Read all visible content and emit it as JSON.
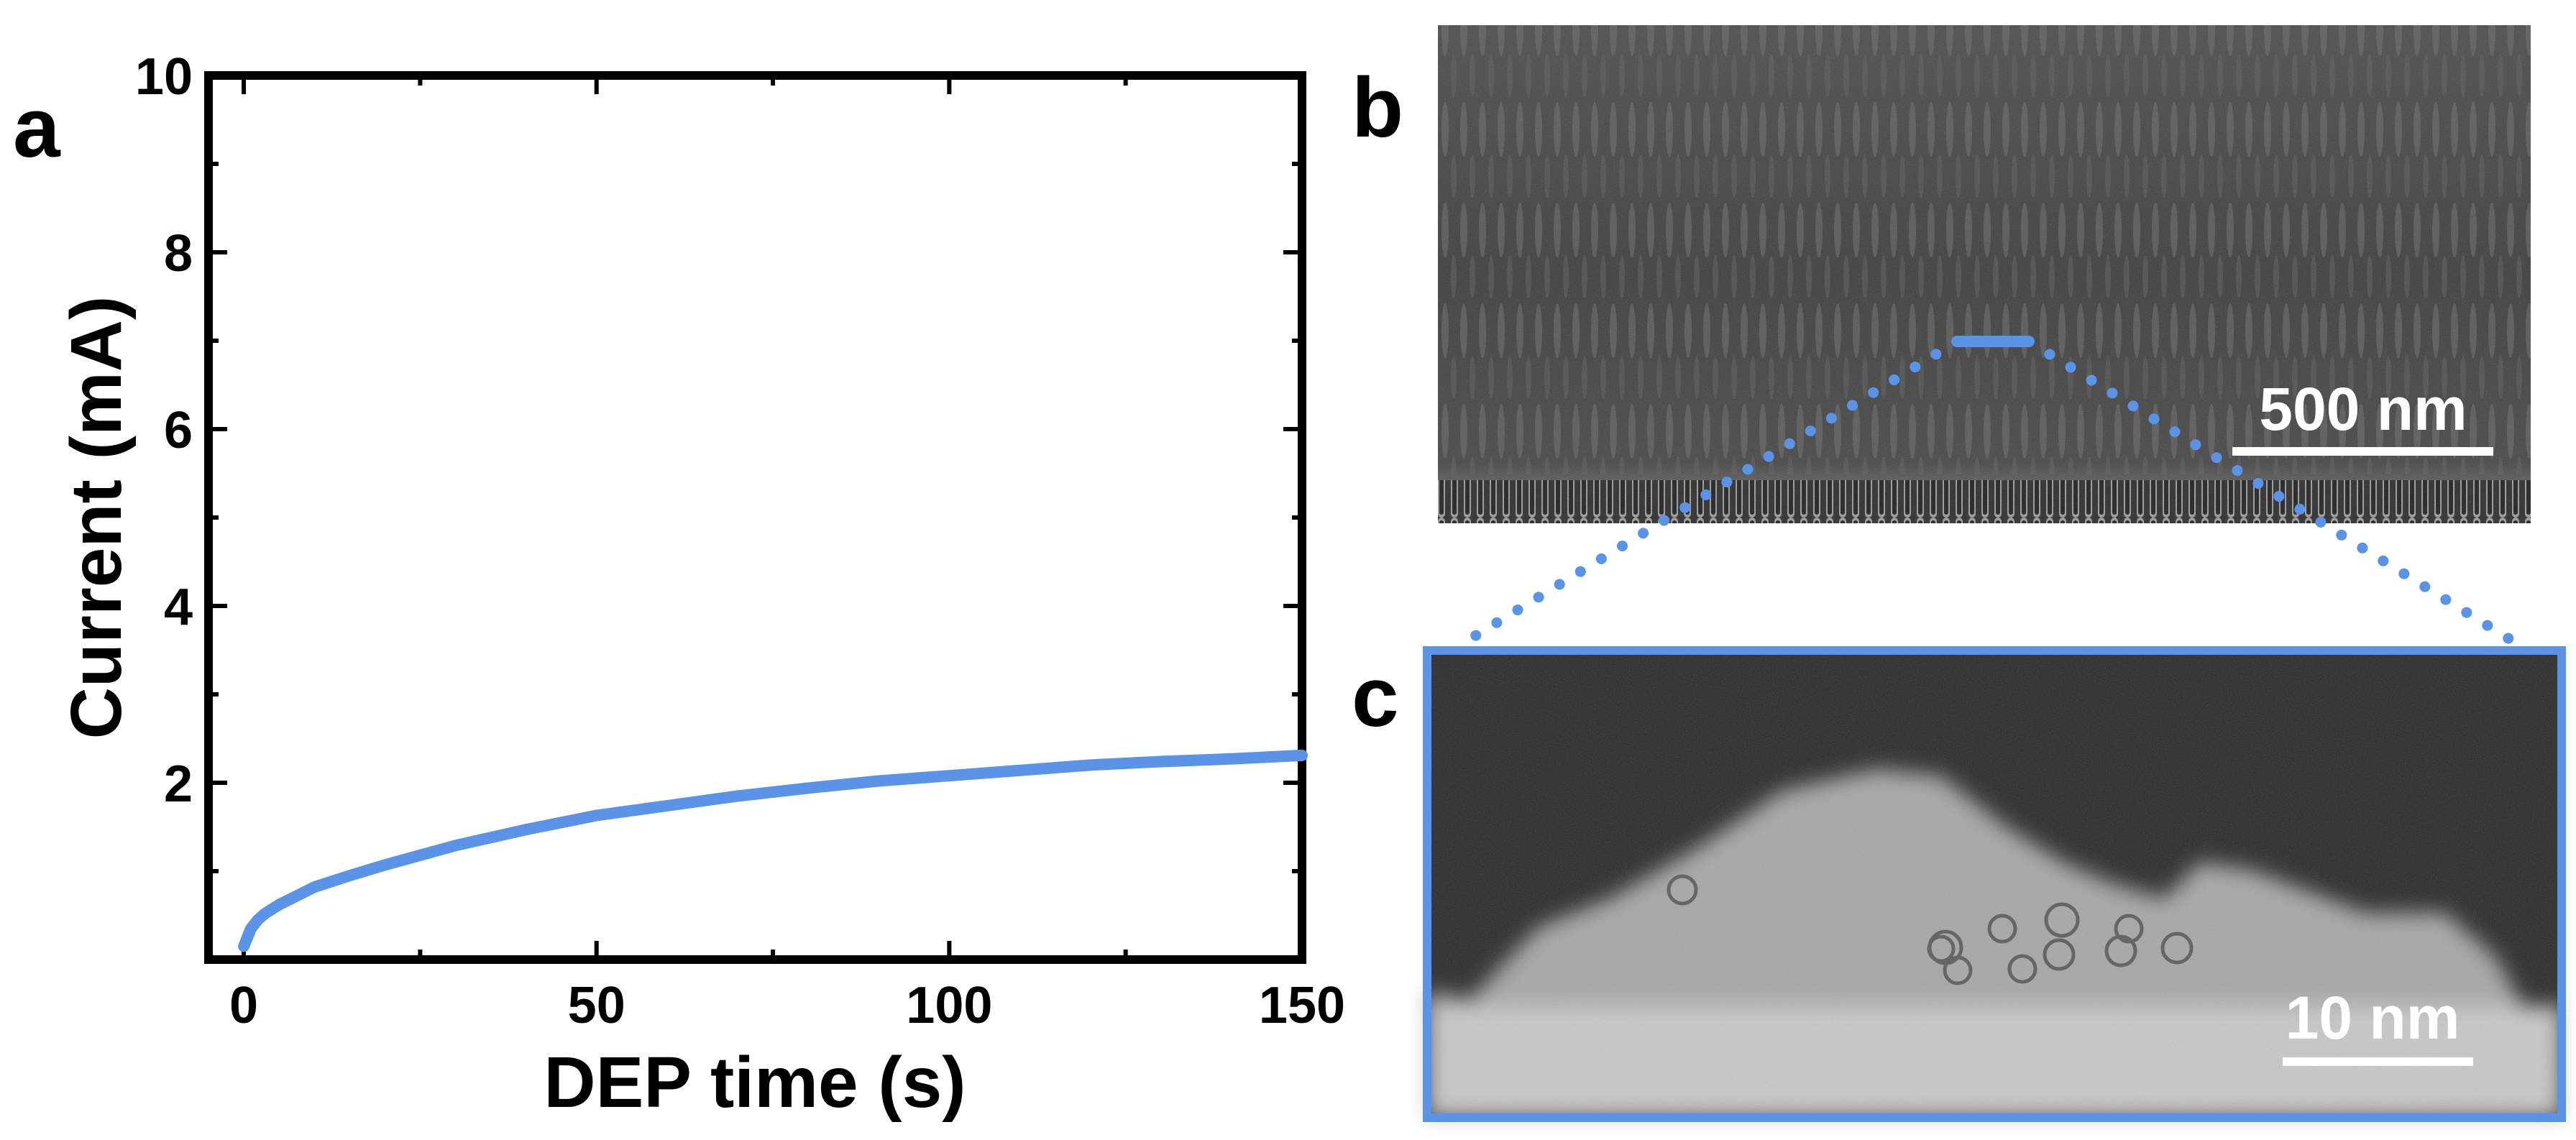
{
  "panels": {
    "a": "a",
    "b": "b",
    "c": "c"
  },
  "colors": {
    "curve": "#5b93e6",
    "highlight": "#5b93e6",
    "frame": "#000000"
  },
  "chart_data": {
    "type": "line",
    "xlabel": "DEP time (s)",
    "ylabel": "Current (mA)",
    "xlim": [
      -5,
      150
    ],
    "ylim": [
      0,
      10
    ],
    "xticks": [
      0,
      50,
      100,
      150
    ],
    "yticks": [
      2,
      4,
      6,
      8,
      10
    ],
    "grid": false,
    "series": [
      {
        "x": [
          0,
          1,
          2,
          3,
          5,
          8,
          10,
          15,
          20,
          25,
          30,
          40,
          50,
          60,
          70,
          80,
          90,
          100,
          110,
          120,
          130,
          140,
          150
        ],
        "values": [
          0.15,
          0.35,
          0.45,
          0.52,
          0.62,
          0.74,
          0.82,
          0.95,
          1.07,
          1.18,
          1.29,
          1.47,
          1.63,
          1.74,
          1.85,
          1.94,
          2.02,
          2.08,
          2.14,
          2.2,
          2.24,
          2.27,
          2.31
        ]
      }
    ]
  },
  "images": {
    "b": {
      "scalebar": "500 nm"
    },
    "c": {
      "scalebar": "10 nm"
    }
  }
}
